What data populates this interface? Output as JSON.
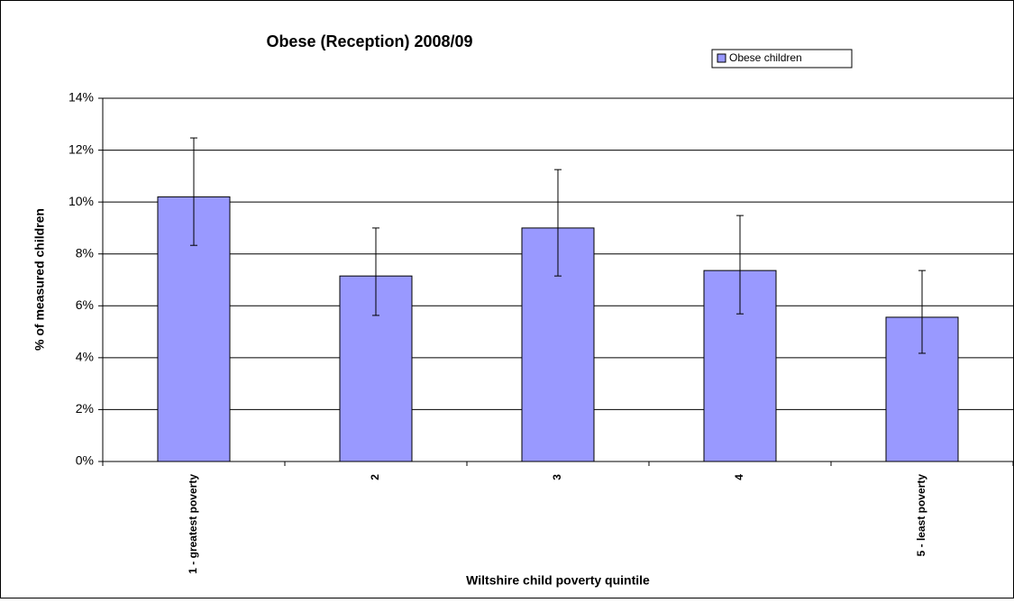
{
  "chart_data": {
    "type": "bar",
    "title": "Obese (Reception) 2008/09",
    "x_label": "Wiltshire child poverty quintile",
    "y_label": "% of measured children",
    "categories": [
      "1 - greatest poverty",
      "2",
      "3",
      "4",
      "5 - least poverty"
    ],
    "series": [
      {
        "name": "Obese children",
        "color": "#9999ff",
        "values": [
          10.2,
          7.15,
          9.0,
          7.36,
          5.56
        ],
        "error_low": [
          8.33,
          5.63,
          7.15,
          5.69,
          4.17
        ],
        "error_high": [
          12.47,
          9.0,
          11.25,
          9.48,
          7.36
        ]
      }
    ],
    "ylim": [
      0,
      14
    ],
    "yticks": [
      {
        "value": 0,
        "label": "0%"
      },
      {
        "value": 2,
        "label": "2%"
      },
      {
        "value": 4,
        "label": "4%"
      },
      {
        "value": 6,
        "label": "6%"
      },
      {
        "value": 8,
        "label": "8%"
      },
      {
        "value": 10,
        "label": "10%"
      },
      {
        "value": 12,
        "label": "12%"
      },
      {
        "value": 14,
        "label": "14%"
      }
    ],
    "grid": true,
    "legend": "top-right"
  }
}
